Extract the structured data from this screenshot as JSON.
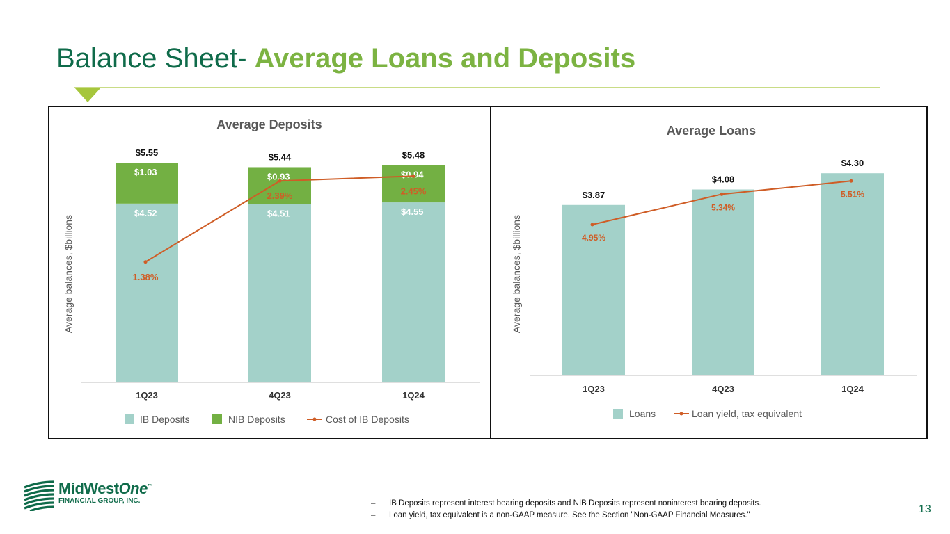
{
  "title": {
    "part1": "Balance Sheet-",
    "part2": "Average Loans and Deposits"
  },
  "colors": {
    "ib_deposits": "#a3d1c9",
    "nib_deposits": "#73b043",
    "line": "#cf5d26",
    "title_dark": "#0f6b4a",
    "title_green": "#7cb342"
  },
  "chart_data": [
    {
      "type": "bar",
      "stacked": true,
      "title": "Average Deposits",
      "ylabel": "Average balances, $billions",
      "categories": [
        "1Q23",
        "4Q23",
        "1Q24"
      ],
      "series": [
        {
          "name": "IB Deposits",
          "values": [
            4.52,
            4.51,
            4.55
          ],
          "labels": [
            "$4.52",
            "$4.51",
            "$4.55"
          ]
        },
        {
          "name": "NIB Deposits",
          "values": [
            1.03,
            0.93,
            0.94
          ],
          "labels": [
            "$1.03",
            "$0.93",
            "$0.94"
          ]
        }
      ],
      "totals": [
        5.55,
        5.44,
        5.48
      ],
      "total_labels": [
        "$5.55",
        "$5.44",
        "$5.48"
      ],
      "line_series": {
        "name": "Cost of IB Deposits",
        "values": [
          1.38,
          2.39,
          2.45
        ],
        "labels": [
          "1.38%",
          "2.39%",
          "2.45%"
        ]
      },
      "legend": [
        "IB Deposits",
        "NIB Deposits",
        "Cost of IB Deposits"
      ],
      "legend_position": "bottom",
      "grid": false
    },
    {
      "type": "bar",
      "title": "Average Loans",
      "ylabel": "Average balances, $billions",
      "categories": [
        "1Q23",
        "4Q23",
        "1Q24"
      ],
      "series": [
        {
          "name": "Loans",
          "values": [
            3.87,
            4.08,
            4.3
          ],
          "labels": [
            "$3.87",
            "$4.08",
            "$4.30"
          ]
        }
      ],
      "line_series": {
        "name": "Loan yield, tax equivalent",
        "values": [
          4.95,
          5.34,
          5.51
        ],
        "labels": [
          "4.95%",
          "5.34%",
          "5.51%"
        ]
      },
      "legend": [
        "Loans",
        "Loan yield, tax equivalent"
      ],
      "legend_position": "bottom",
      "grid": false
    }
  ],
  "logo": {
    "name_main": "MidWest",
    "name_italic": "One",
    "tm": "™",
    "subtitle": "FINANCIAL GROUP, INC."
  },
  "footnotes": [
    {
      "dash": "–",
      "text": "IB Deposits represent interest bearing deposits and NIB Deposits represent noninterest bearing deposits."
    },
    {
      "dash": "–",
      "text": "Loan yield, tax equivalent is a non-GAAP measure. See the Section \"Non-GAAP Financial Measures.\""
    }
  ],
  "page_number": "13",
  "icons": [
    "logo-icon",
    "slide-marker-icon"
  ]
}
